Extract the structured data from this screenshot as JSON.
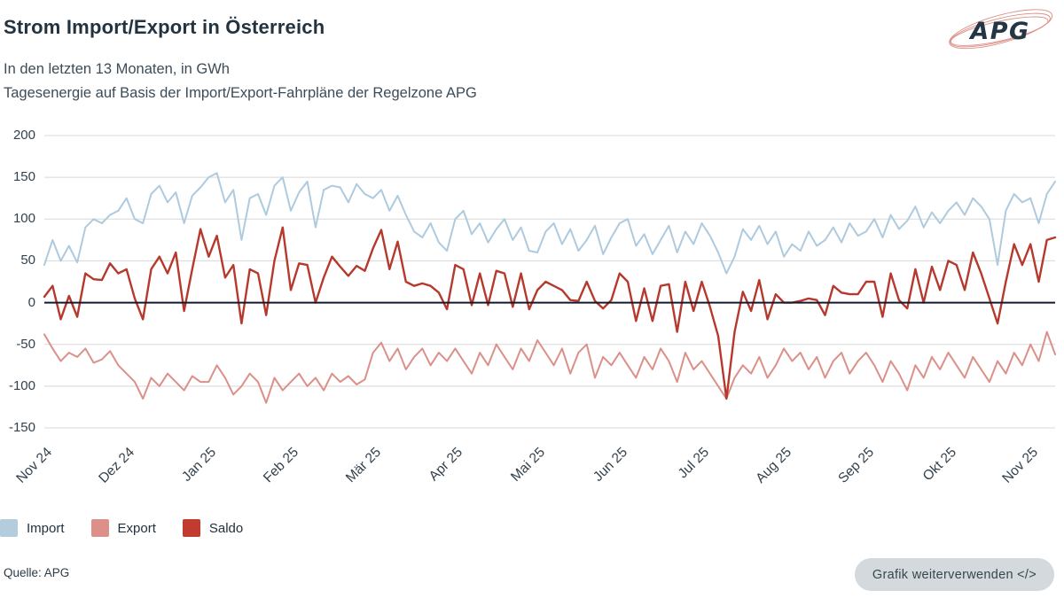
{
  "header": {
    "title": "Strom Import/Export in Österreich",
    "subtitle1": "In den letzten 13 Monaten, in GWh",
    "subtitle2": "Tagesenergie auf Basis der Import/Export-Fahrpläne der Regelzone APG",
    "logo_text": "APG"
  },
  "chart_data": {
    "type": "line",
    "title": "Strom Import/Export in Österreich",
    "ylabel": "GWh",
    "ylim": [
      -150,
      200
    ],
    "yticks": [
      200,
      150,
      100,
      50,
      0,
      -50,
      -100,
      -150
    ],
    "grid": true,
    "zero_line": true,
    "zero_line_color": "#141a2e",
    "gridline_color": "#d8d8d8",
    "legend_position": "bottom-left",
    "x_tick_labels": [
      "Nov 24",
      "Dez 24",
      "Jan 25",
      "Feb 25",
      "Mär 25",
      "Apr 25",
      "Mai 25",
      "Jun 25",
      "Jul 25",
      "Aug 25",
      "Sep 25",
      "Okt 25",
      "Nov 25"
    ],
    "x_tick_indices": [
      0,
      10,
      20,
      30,
      40,
      50,
      60,
      70,
      80,
      90,
      100,
      110,
      120
    ],
    "series": [
      {
        "name": "Import",
        "color": "#aecade",
        "line_width": 2,
        "values": [
          45,
          75,
          50,
          68,
          48,
          90,
          100,
          95,
          105,
          110,
          125,
          100,
          95,
          130,
          140,
          120,
          132,
          95,
          128,
          138,
          150,
          155,
          120,
          135,
          75,
          125,
          130,
          105,
          140,
          150,
          110,
          132,
          145,
          90,
          135,
          140,
          138,
          120,
          142,
          130,
          125,
          135,
          110,
          128,
          105,
          85,
          78,
          95,
          72,
          62,
          100,
          110,
          82,
          95,
          72,
          88,
          100,
          75,
          90,
          62,
          60,
          85,
          95,
          70,
          88,
          62,
          75,
          92,
          58,
          78,
          95,
          100,
          68,
          82,
          58,
          75,
          92,
          60,
          85,
          70,
          95,
          80,
          60,
          35,
          55,
          88,
          75,
          92,
          70,
          85,
          55,
          70,
          62,
          85,
          68,
          75,
          90,
          72,
          95,
          80,
          85,
          100,
          78,
          105,
          88,
          98,
          115,
          90,
          108,
          95,
          110,
          120,
          105,
          125,
          115,
          100,
          45,
          110,
          130,
          120,
          125,
          95,
          130,
          145
        ]
      },
      {
        "name": "Export",
        "color": "#db9089",
        "line_width": 2,
        "values": [
          -38,
          -55,
          -70,
          -60,
          -65,
          -55,
          -72,
          -68,
          -58,
          -75,
          -85,
          -95,
          -115,
          -90,
          -100,
          -85,
          -95,
          -105,
          -88,
          -95,
          -95,
          -75,
          -90,
          -110,
          -100,
          -85,
          -95,
          -120,
          -90,
          -105,
          -95,
          -85,
          -100,
          -90,
          -105,
          -85,
          -95,
          -88,
          -98,
          -92,
          -60,
          -48,
          -70,
          -55,
          -80,
          -65,
          -55,
          -75,
          -60,
          -70,
          -55,
          -70,
          -85,
          -60,
          -75,
          -50,
          -65,
          -80,
          -55,
          -70,
          -45,
          -60,
          -75,
          -55,
          -85,
          -60,
          -50,
          -90,
          -65,
          -75,
          -60,
          -75,
          -90,
          -65,
          -80,
          -55,
          -70,
          -95,
          -60,
          -80,
          -70,
          -85,
          -100,
          -115,
          -90,
          -75,
          -85,
          -65,
          -90,
          -75,
          -55,
          -70,
          -60,
          -80,
          -65,
          -90,
          -70,
          -60,
          -85,
          -70,
          -60,
          -75,
          -95,
          -70,
          -85,
          -105,
          -75,
          -90,
          -65,
          -80,
          -60,
          -75,
          -90,
          -65,
          -80,
          -95,
          -70,
          -85,
          -60,
          -75,
          -50,
          -70,
          -35,
          -62
        ]
      },
      {
        "name": "Saldo",
        "color": "#b5392d",
        "line_width": 2.4,
        "values": [
          7,
          20,
          -20,
          8,
          -17,
          35,
          28,
          27,
          47,
          35,
          40,
          5,
          -20,
          40,
          55,
          35,
          60,
          -10,
          40,
          88,
          55,
          80,
          30,
          45,
          -25,
          40,
          35,
          -15,
          50,
          90,
          15,
          47,
          45,
          0,
          30,
          55,
          43,
          32,
          44,
          38,
          65,
          87,
          40,
          73,
          25,
          20,
          23,
          20,
          12,
          -8,
          45,
          40,
          -3,
          35,
          -3,
          38,
          35,
          -5,
          35,
          -8,
          15,
          25,
          20,
          15,
          3,
          2,
          25,
          2,
          -7,
          3,
          35,
          25,
          -22,
          17,
          -22,
          20,
          22,
          -35,
          25,
          -10,
          25,
          -5,
          -40,
          -115,
          -35,
          13,
          -10,
          27,
          -20,
          10,
          0,
          0,
          2,
          5,
          3,
          -15,
          20,
          12,
          10,
          10,
          25,
          25,
          -17,
          35,
          3,
          -7,
          40,
          0,
          43,
          15,
          50,
          45,
          15,
          60,
          35,
          5,
          -25,
          25,
          70,
          45,
          70,
          25,
          75,
          78
        ]
      }
    ]
  },
  "legend": {
    "items": [
      {
        "label": "Import",
        "color": "#b4cdde"
      },
      {
        "label": "Export",
        "color": "#dc9089"
      },
      {
        "label": "Saldo",
        "color": "#c23b2f"
      }
    ]
  },
  "footer": {
    "source": "Quelle: APG",
    "reuse_button_label": "Grafik weiterverwenden </>"
  }
}
